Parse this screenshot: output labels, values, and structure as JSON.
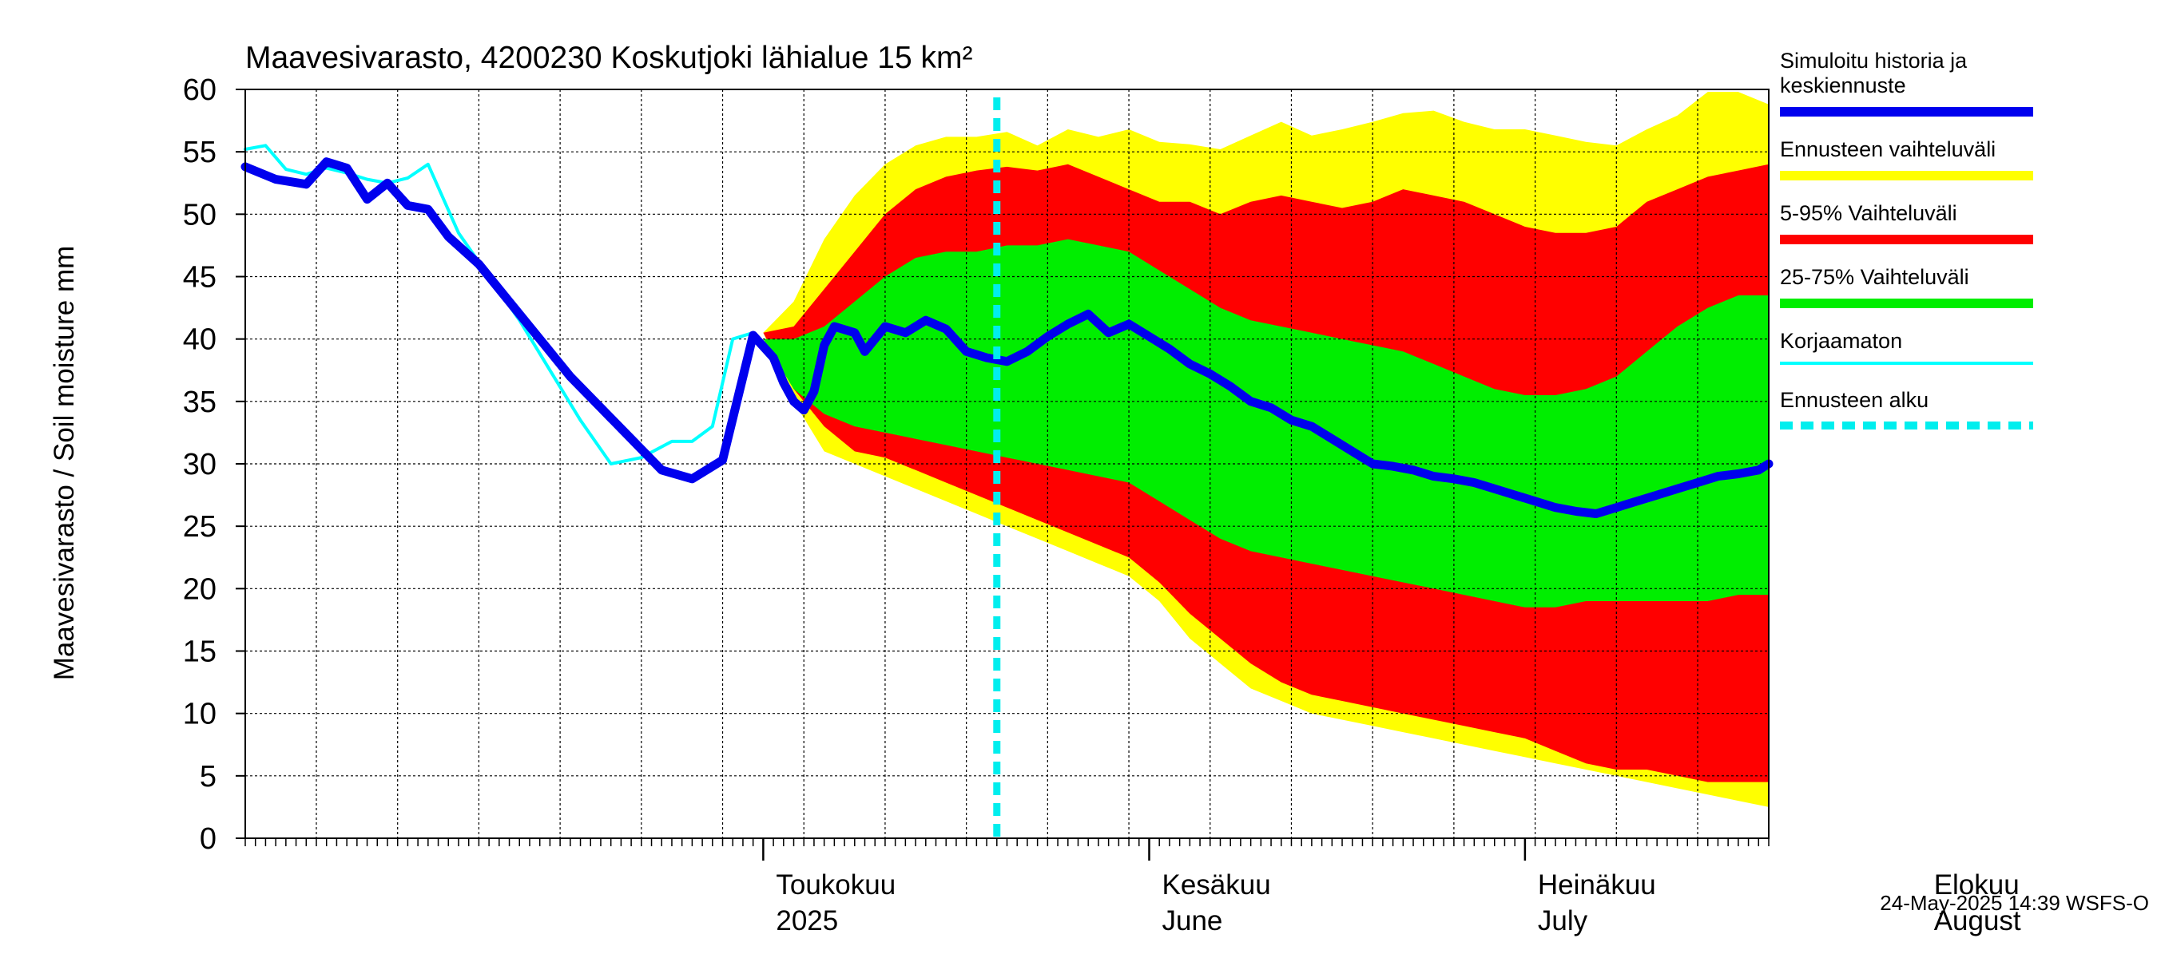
{
  "chart_data": {
    "type": "area",
    "title": "Maavesivarasto, 4200230 Koskutjoki lähialue 15 km²",
    "ylabel": "Maavesivarasto / Soil moisture   mm",
    "ylim": [
      0,
      60
    ],
    "yticks": [
      0,
      5,
      10,
      15,
      20,
      25,
      30,
      35,
      40,
      45,
      50,
      55,
      60
    ],
    "xrange_days": [
      -51,
      99
    ],
    "grid": true,
    "legend_position": "right",
    "month_labels": [
      {
        "fi": "Toukokuu",
        "en": "2025",
        "day": 0
      },
      {
        "fi": "Kesäkuu",
        "en": "June",
        "day": 38
      },
      {
        "fi": "Heinäkuu",
        "en": "July",
        "day": 75
      },
      {
        "fi": "Elokuu",
        "en": "August",
        "day": 114
      }
    ],
    "month_boundaries": [
      0,
      38,
      75,
      114
    ],
    "forecast_start_day": 23,
    "timestamp": "24-May-2025 14:39 WSFS-O",
    "colors": {
      "history": "#0000ee",
      "range": "#ffff00",
      "p5_95": "#ff0000",
      "p25_75": "#00ee00",
      "uncorrected": "#00ffff",
      "forecast_start": "#00eeee"
    },
    "legend": [
      {
        "label": "Simuloitu historia ja keskiennuste",
        "color": "#0000ee",
        "style": "thick"
      },
      {
        "label": "Ennusteen vaihteluväli",
        "color": "#ffff00",
        "style": "thick"
      },
      {
        "label": "5-95% Vaihteluväli",
        "color": "#ff0000",
        "style": "thick"
      },
      {
        "label": "25-75% Vaihteluväli",
        "color": "#00ee00",
        "style": "thick"
      },
      {
        "label": "Korjaamaton",
        "color": "#00ffff",
        "style": "thin"
      },
      {
        "label": "Ennusteen alku",
        "color": "#00eeee",
        "style": "dashed"
      }
    ],
    "series": [
      {
        "name": "Simuloitu historia ja keskiennuste",
        "x": [
          -51,
          -48,
          -45,
          -43,
          -41,
          -39,
          -37,
          -35,
          -33,
          -31,
          -28,
          -25,
          -22,
          -19,
          -16,
          -13,
          -10,
          -7,
          -4,
          -1,
          1,
          2,
          3,
          4,
          5,
          6,
          7,
          9,
          10,
          12,
          14,
          16,
          18,
          20,
          22,
          24,
          26,
          28,
          30,
          32,
          34,
          36,
          38,
          40,
          42,
          44,
          46,
          48,
          50,
          52,
          54,
          56,
          58,
          60,
          62,
          64,
          66,
          68,
          70,
          72,
          74,
          76,
          78,
          80,
          82,
          84,
          86,
          88,
          90,
          92,
          94,
          96,
          98,
          99
        ],
        "y": [
          53.8,
          52.8,
          52.4,
          54.2,
          53.7,
          51.2,
          52.5,
          50.7,
          50.4,
          48.2,
          46,
          43,
          40,
          37,
          34.5,
          32,
          29.5,
          28.8,
          30.3,
          40.3,
          38.5,
          36.5,
          35,
          34.3,
          35.8,
          39.5,
          41,
          40.5,
          39,
          41,
          40.5,
          41.5,
          40.8,
          39,
          38.5,
          38.2,
          39,
          40.2,
          41.2,
          42,
          40.5,
          41.2,
          40.2,
          39.2,
          38,
          37.2,
          36.2,
          35,
          34.5,
          33.5,
          33,
          32,
          31,
          30,
          29.8,
          29.5,
          29,
          28.8,
          28.5,
          28,
          27.5,
          27,
          26.5,
          26.2,
          26,
          26.5,
          27,
          27.5,
          28,
          28.5,
          29,
          29.2,
          29.5,
          30
        ]
      },
      {
        "name": "Korjaamaton",
        "x": [
          -51,
          -49,
          -47,
          -45,
          -43,
          -41,
          -39,
          -37,
          -35,
          -33,
          -30,
          -27,
          -24,
          -21,
          -18,
          -15,
          -12,
          -9,
          -7,
          -5,
          -3,
          -1
        ],
        "y": [
          55.2,
          55.5,
          53.6,
          53.2,
          53.7,
          53.3,
          52.8,
          52.5,
          52.9,
          54,
          48.5,
          45,
          41.5,
          37.5,
          33.5,
          30,
          30.5,
          31.8,
          31.8,
          33,
          40,
          40.5
        ]
      },
      {
        "name": "Ennusteen vaihteluväli",
        "x": [
          0,
          3,
          6,
          9,
          12,
          15,
          18,
          21,
          24,
          27,
          30,
          33,
          36,
          39,
          42,
          45,
          48,
          51,
          54,
          57,
          60,
          63,
          66,
          69,
          72,
          75,
          78,
          81,
          84,
          87,
          90,
          93,
          96,
          99
        ],
        "y_high": [
          40.5,
          43,
          48,
          51.5,
          54,
          55.5,
          56.2,
          56.2,
          56.6,
          55.5,
          56.8,
          56.2,
          56.8,
          55.8,
          55.6,
          55.2,
          56.3,
          57.4,
          56.3,
          56.8,
          57.4,
          58.1,
          58.3,
          57.4,
          56.8,
          56.8,
          56.3,
          55.8,
          55.5,
          56.8,
          57.9,
          59.8,
          59.8,
          58.8
        ],
        "y_low": [
          40.5,
          35,
          31,
          30,
          29,
          28,
          27,
          26,
          25,
          24,
          23,
          22,
          21,
          19,
          16,
          14,
          12,
          11,
          10,
          9.5,
          9,
          8.5,
          8,
          7.5,
          7,
          6.5,
          6,
          5.5,
          5,
          4.5,
          4,
          3.5,
          3,
          2.5
        ]
      },
      {
        "name": "5-95% Vaihteluväli",
        "x": [
          0,
          3,
          6,
          9,
          12,
          15,
          18,
          21,
          24,
          27,
          30,
          33,
          36,
          39,
          42,
          45,
          48,
          51,
          54,
          57,
          60,
          63,
          66,
          69,
          72,
          75,
          78,
          81,
          84,
          87,
          90,
          93,
          96,
          99
        ],
        "y_high": [
          40.5,
          41,
          44,
          47,
          50,
          52,
          53,
          53.5,
          53.8,
          53.5,
          54,
          53,
          52,
          51,
          51,
          50,
          51,
          51.5,
          51,
          50.5,
          51,
          52,
          51.5,
          51,
          50,
          49,
          48.5,
          48.5,
          49,
          51,
          52,
          53,
          53.5,
          54
        ],
        "y_low": [
          40.5,
          36,
          33,
          31,
          30.5,
          29.5,
          28.5,
          27.5,
          26.5,
          25.5,
          24.5,
          23.5,
          22.5,
          20.5,
          18,
          16,
          14,
          12.5,
          11.5,
          11,
          10.5,
          10,
          9.5,
          9,
          8.5,
          8,
          7,
          6,
          5.5,
          5.5,
          5,
          4.5,
          4.5,
          4.5
        ]
      },
      {
        "name": "25-75% Vaihteluväli",
        "x": [
          0,
          3,
          6,
          9,
          12,
          15,
          18,
          21,
          24,
          27,
          30,
          33,
          36,
          39,
          42,
          45,
          48,
          51,
          54,
          57,
          60,
          63,
          66,
          69,
          72,
          75,
          78,
          81,
          84,
          87,
          90,
          93,
          96,
          99
        ],
        "y_high": [
          40,
          40,
          41,
          43,
          45,
          46.5,
          47,
          47,
          47.5,
          47.5,
          48,
          47.5,
          47,
          45.5,
          44,
          42.5,
          41.5,
          41,
          40.5,
          40,
          39.5,
          39,
          38,
          37,
          36,
          35.5,
          35.5,
          36,
          37,
          39,
          41,
          42.5,
          43.5,
          43.5
        ],
        "y_low": [
          40,
          36,
          34,
          33,
          32.5,
          32,
          31.5,
          31,
          30.5,
          30,
          29.5,
          29,
          28.5,
          27,
          25.5,
          24,
          23,
          22.5,
          22,
          21.5,
          21,
          20.5,
          20,
          19.5,
          19,
          18.5,
          18.5,
          19,
          19,
          19,
          19,
          19,
          19.5,
          19.5
        ]
      }
    ]
  }
}
